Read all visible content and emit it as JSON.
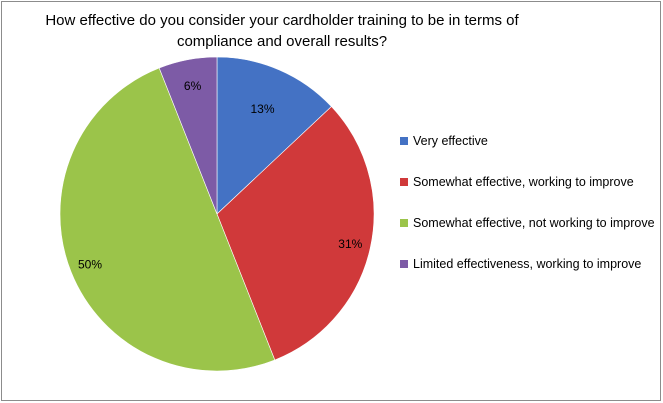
{
  "chart_data": {
    "type": "pie",
    "title": "How effective do you consider your cardholder training to be in terms of compliance and overall results?",
    "categories": [
      "Very effective",
      "Somewhat effective, working to improve",
      "Somewhat effective, not working to improve",
      "Limited effectiveness, working to improve"
    ],
    "values": [
      13,
      31,
      50,
      6
    ],
    "labels": [
      "13%",
      "31%",
      "50%",
      "6%"
    ],
    "colors": [
      "#4472c4",
      "#d0393a",
      "#9bc44a",
      "#7d5ba6"
    ],
    "legend_position": "right"
  }
}
